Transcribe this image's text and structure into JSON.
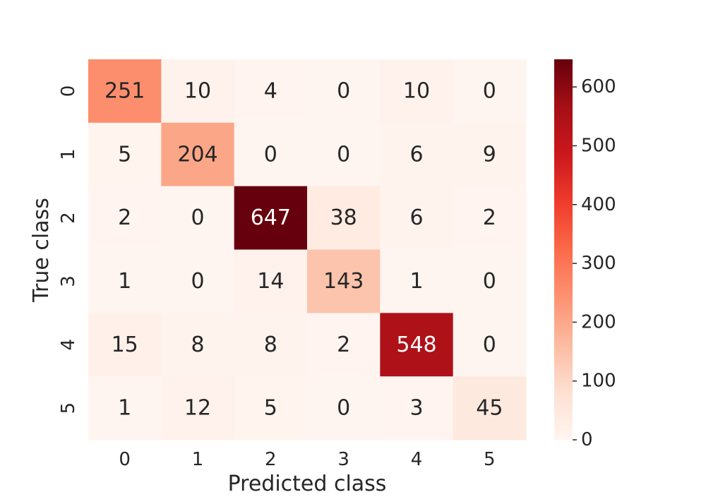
{
  "chart_data": {
    "type": "heatmap",
    "title": "",
    "xlabel": "Predicted class",
    "ylabel": "True class",
    "x_categories": [
      "0",
      "1",
      "2",
      "3",
      "4",
      "5"
    ],
    "y_categories": [
      "0",
      "1",
      "2",
      "3",
      "4",
      "5"
    ],
    "values": [
      [
        251,
        10,
        4,
        0,
        10,
        0
      ],
      [
        5,
        204,
        0,
        0,
        6,
        9
      ],
      [
        2,
        0,
        647,
        38,
        6,
        2
      ],
      [
        1,
        0,
        14,
        143,
        1,
        0
      ],
      [
        15,
        8,
        8,
        2,
        548,
        0
      ],
      [
        1,
        12,
        5,
        0,
        3,
        45
      ]
    ],
    "colormap": "Reds",
    "colorbar": {
      "min": 0,
      "max": 647,
      "ticks": [
        0,
        100,
        200,
        300,
        400,
        500,
        600
      ]
    },
    "annotations": true,
    "grid": false
  }
}
